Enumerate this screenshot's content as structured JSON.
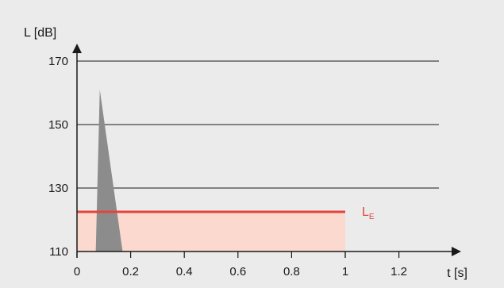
{
  "chart_data": {
    "type": "area",
    "ylabel": "L [dB]",
    "xlabel": "t [s]",
    "xlim": [
      0,
      1.4
    ],
    "ylim": [
      110,
      175
    ],
    "x_ticks": [
      0,
      0.2,
      0.4,
      0.6,
      0.8,
      1,
      1.2
    ],
    "x_tick_labels": [
      "0",
      "0.2",
      "0.4",
      "0.6",
      "0.8",
      "1",
      "1.2"
    ],
    "y_ticks": [
      110,
      130,
      150,
      170
    ],
    "y_tick_labels": [
      "110",
      "130",
      "150",
      "170"
    ],
    "grid": "horizontal",
    "series": [
      {
        "kind": "peak",
        "color": "#8c8c8c",
        "points": [
          [
            0.07,
            110
          ],
          [
            0.085,
            161
          ],
          [
            0.17,
            110
          ]
        ]
      },
      {
        "name": "L_E",
        "kind": "level",
        "color": "#e0463c",
        "fill": "#fbd9cf",
        "value": 122.5,
        "x_range": [
          0,
          1
        ]
      }
    ],
    "annotations": [
      {
        "text": "L",
        "subscript": "E",
        "color": "#e0463c"
      }
    ]
  }
}
